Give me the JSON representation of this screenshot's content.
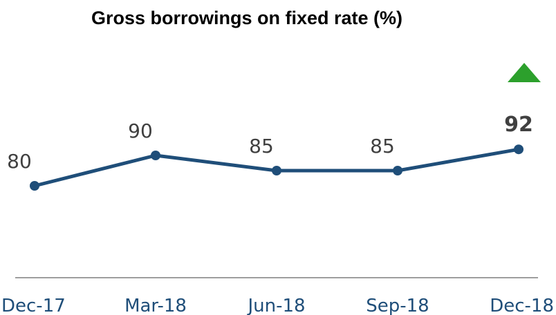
{
  "chart_data": {
    "type": "line",
    "title": "Gross borrowings on fixed rate (%)",
    "categories": [
      "Dec-17",
      "Mar-18",
      "Jun-18",
      "Sep-18",
      "Dec-18"
    ],
    "values": [
      80,
      90,
      85,
      85,
      92
    ],
    "value_labels": [
      "80",
      "90",
      "85",
      "85",
      "92"
    ],
    "highlight_index": 4,
    "trend": "up",
    "xlabel": "",
    "ylabel": "",
    "ylim": [
      50,
      100
    ],
    "grid": false,
    "legend": "none",
    "colors": {
      "line": "#1f4e79",
      "tick_label": "#1f4e79",
      "value_label": "#404040",
      "trend_marker": "#2ca02c",
      "axis": "#7f7f7f"
    }
  }
}
